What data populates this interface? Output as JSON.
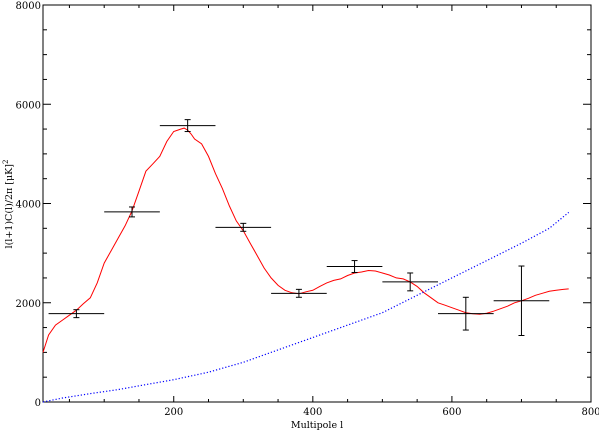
{
  "chart_data": {
    "type": "line",
    "xlabel": "Multipole l",
    "ylabel": "l(l+1)C(l)/2π [μK]",
    "ylabel_sup": "2",
    "xlim": [
      12,
      800
    ],
    "ylim": [
      0,
      8000
    ],
    "x_ticks": [
      200,
      400,
      600,
      800
    ],
    "y_ticks": [
      0,
      2000,
      4000,
      6000,
      8000
    ],
    "grid": false,
    "legend": "none",
    "series": [
      {
        "style": "solid",
        "color": "#ff0000",
        "x": [
          12,
          20,
          30,
          40,
          50,
          60,
          70,
          80,
          90,
          100,
          110,
          120,
          130,
          140,
          150,
          160,
          170,
          180,
          190,
          200,
          210,
          215,
          220,
          225,
          230,
          240,
          250,
          260,
          270,
          280,
          290,
          300,
          310,
          320,
          330,
          340,
          350,
          360,
          370,
          380,
          390,
          400,
          410,
          420,
          430,
          440,
          450,
          460,
          470,
          480,
          490,
          500,
          510,
          520,
          530,
          540,
          550,
          560,
          570,
          580,
          590,
          600,
          610,
          620,
          630,
          640,
          650,
          660,
          670,
          680,
          690,
          700,
          710,
          720,
          730,
          740,
          750,
          760,
          768
        ],
        "y": [
          1000,
          1350,
          1550,
          1650,
          1750,
          1850,
          1980,
          2100,
          2400,
          2800,
          3050,
          3300,
          3550,
          3850,
          4250,
          4650,
          4800,
          4950,
          5250,
          5450,
          5500,
          5520,
          5480,
          5400,
          5300,
          5200,
          4950,
          4600,
          4300,
          3950,
          3650,
          3450,
          3200,
          2950,
          2700,
          2500,
          2350,
          2250,
          2200,
          2180,
          2220,
          2250,
          2330,
          2400,
          2450,
          2480,
          2550,
          2600,
          2620,
          2650,
          2640,
          2600,
          2560,
          2500,
          2480,
          2420,
          2330,
          2200,
          2100,
          2000,
          1950,
          1900,
          1850,
          1800,
          1780,
          1770,
          1790,
          1830,
          1880,
          1930,
          2000,
          2040,
          2090,
          2150,
          2190,
          2230,
          2250,
          2270,
          2280
        ]
      },
      {
        "style": "dotted",
        "color": "#0000ff",
        "x": [
          12,
          40,
          80,
          120,
          160,
          200,
          250,
          300,
          350,
          400,
          450,
          500,
          550,
          600,
          650,
          700,
          740,
          768
        ],
        "y": [
          0,
          80,
          170,
          250,
          350,
          450,
          600,
          800,
          1050,
          1300,
          1550,
          1800,
          2150,
          2500,
          2850,
          3200,
          3500,
          3820
        ]
      }
    ],
    "points": [
      {
        "x": 60,
        "y": 1780,
        "x_err": 40,
        "y_err": 80
      },
      {
        "x": 140,
        "y": 3830,
        "x_err": 40,
        "y_err": 100
      },
      {
        "x": 220,
        "y": 5570,
        "x_err": 40,
        "y_err": 120
      },
      {
        "x": 300,
        "y": 3520,
        "x_err": 40,
        "y_err": 80
      },
      {
        "x": 380,
        "y": 2190,
        "x_err": 40,
        "y_err": 80
      },
      {
        "x": 460,
        "y": 2730,
        "x_err": 40,
        "y_err": 120
      },
      {
        "x": 540,
        "y": 2420,
        "x_err": 40,
        "y_err": 180
      },
      {
        "x": 620,
        "y": 1780,
        "x_err": 40,
        "y_err": 330
      },
      {
        "x": 700,
        "y": 2040,
        "x_err": 40,
        "y_err": 700
      }
    ]
  }
}
